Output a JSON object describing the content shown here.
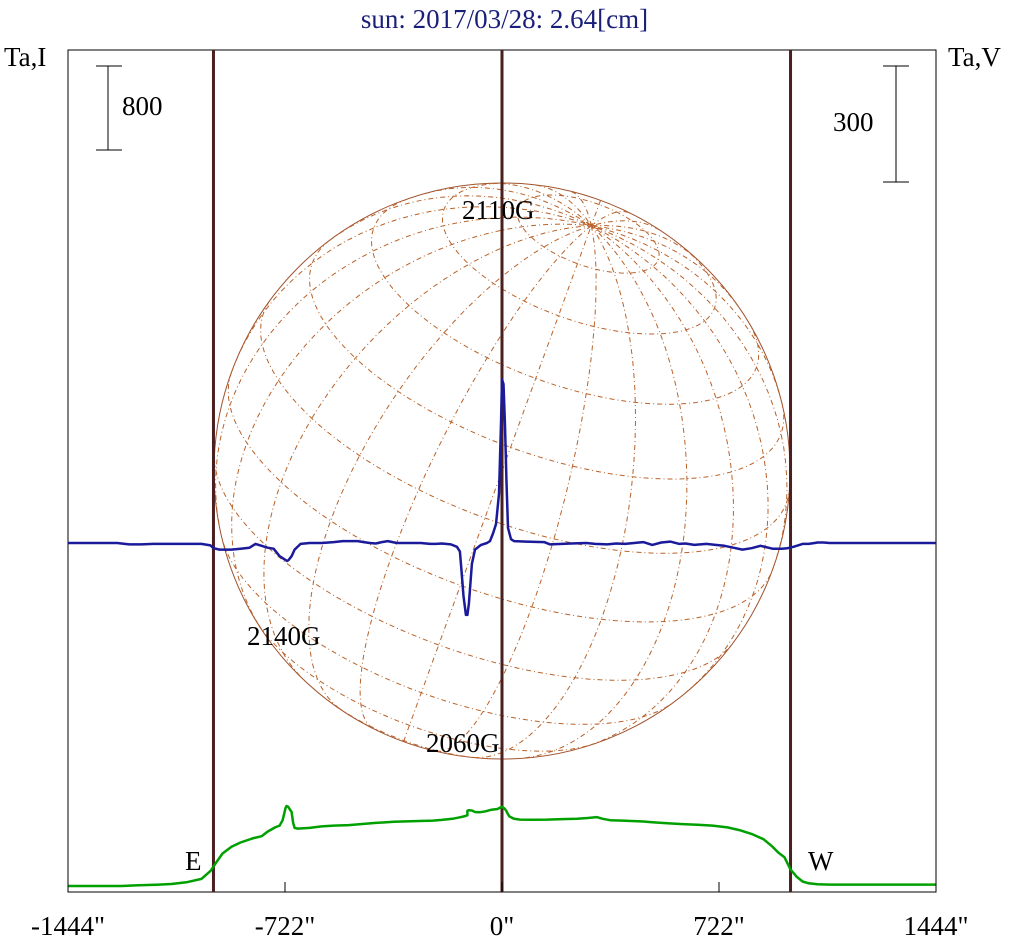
{
  "header": {
    "title": "sun: 2017/03/28: 2.64[cm]",
    "left_label": "Ta,I",
    "right_label": "Ta,V"
  },
  "scale_bars": {
    "left_value": "800",
    "right_value": "300"
  },
  "limb_labels": {
    "east": "E",
    "west": "W"
  },
  "chart_data": {
    "type": "line",
    "xlim": [
      -1444,
      1444
    ],
    "xticks": [
      -1444,
      -722,
      0,
      722,
      1444
    ],
    "xtick_labels": [
      "-1444\"",
      "-722\"",
      "0\"",
      "722\"",
      "1444\""
    ],
    "limb_lines_x": [
      -960,
      0,
      960
    ],
    "solar_radius": 960,
    "annotations": [
      {
        "text": "2110G",
        "x": 0,
        "series": "Ta,I"
      },
      {
        "text": "2140G",
        "x": -708,
        "series": "Ta,V"
      },
      {
        "text": "2060G",
        "x": -110,
        "series": "Ta,V"
      }
    ],
    "series": [
      {
        "name": "Ta,I",
        "color": "#00a000",
        "points": [
          [
            -1444,
            0
          ],
          [
            -1268,
            0
          ],
          [
            -1210,
            45
          ],
          [
            -1150,
            85
          ],
          [
            -1100,
            135
          ],
          [
            -1050,
            245
          ],
          [
            -1000,
            470
          ],
          [
            -970,
            1000
          ],
          [
            -950,
            1580
          ],
          [
            -930,
            2150
          ],
          [
            -900,
            2600
          ],
          [
            -870,
            2880
          ],
          [
            -830,
            3150
          ],
          [
            -800,
            3300
          ],
          [
            -780,
            3600
          ],
          [
            -755,
            3880
          ],
          [
            -740,
            4000
          ],
          [
            -730,
            4350
          ],
          [
            -720,
            5180
          ],
          [
            -717,
            5300
          ],
          [
            -712,
            5260
          ],
          [
            -700,
            4900
          ],
          [
            -695,
            4200
          ],
          [
            -690,
            3850
          ],
          [
            -680,
            3800
          ],
          [
            -640,
            3850
          ],
          [
            -600,
            3950
          ],
          [
            -560,
            4000
          ],
          [
            -510,
            4030
          ],
          [
            -470,
            4100
          ],
          [
            -420,
            4180
          ],
          [
            -360,
            4250
          ],
          [
            -290,
            4300
          ],
          [
            -230,
            4330
          ],
          [
            -200,
            4380
          ],
          [
            -165,
            4450
          ],
          [
            -140,
            4550
          ],
          [
            -128,
            4600
          ],
          [
            -115,
            4680
          ],
          [
            -115,
            4980
          ],
          [
            -110,
            5020
          ],
          [
            -100,
            5000
          ],
          [
            -90,
            4900
          ],
          [
            -75,
            4880
          ],
          [
            -55,
            4950
          ],
          [
            -35,
            5050
          ],
          [
            -15,
            5100
          ],
          [
            0,
            5260
          ],
          [
            10,
            5100
          ],
          [
            15,
            4950
          ],
          [
            20,
            4750
          ],
          [
            25,
            4600
          ],
          [
            40,
            4450
          ],
          [
            60,
            4400
          ],
          [
            100,
            4390
          ],
          [
            150,
            4400
          ],
          [
            200,
            4430
          ],
          [
            250,
            4450
          ],
          [
            285,
            4500
          ],
          [
            315,
            4560
          ],
          [
            335,
            4450
          ],
          [
            360,
            4360
          ],
          [
            400,
            4330
          ],
          [
            440,
            4300
          ],
          [
            470,
            4270
          ],
          [
            500,
            4220
          ],
          [
            550,
            4150
          ],
          [
            600,
            4100
          ],
          [
            650,
            4050
          ],
          [
            700,
            4000
          ],
          [
            750,
            3880
          ],
          [
            790,
            3700
          ],
          [
            830,
            3450
          ],
          [
            870,
            3100
          ],
          [
            900,
            2600
          ],
          [
            920,
            2200
          ],
          [
            940,
            1900
          ],
          [
            960,
            1100
          ],
          [
            980,
            620
          ],
          [
            1000,
            300
          ],
          [
            1020,
            180
          ],
          [
            1050,
            110
          ],
          [
            1090,
            95
          ],
          [
            1444,
            95
          ]
        ]
      },
      {
        "name": "Ta,V",
        "color": "#1a1a9a",
        "points": [
          [
            -1444,
            0
          ],
          [
            -1280,
            0
          ],
          [
            -1240,
            -15
          ],
          [
            -1200,
            -15
          ],
          [
            -1160,
            -10
          ],
          [
            -1000,
            -10
          ],
          [
            -970,
            -25
          ],
          [
            -960,
            -55
          ],
          [
            -940,
            -70
          ],
          [
            -900,
            -70
          ],
          [
            -870,
            -60
          ],
          [
            -840,
            -50
          ],
          [
            -820,
            -10
          ],
          [
            -800,
            -30
          ],
          [
            -780,
            -50
          ],
          [
            -760,
            -60
          ],
          [
            -740,
            -140
          ],
          [
            -725,
            -170
          ],
          [
            -715,
            -190
          ],
          [
            -710,
            -180
          ],
          [
            -700,
            -140
          ],
          [
            -690,
            -70
          ],
          [
            -670,
            -10
          ],
          [
            -640,
            0
          ],
          [
            -600,
            0
          ],
          [
            -560,
            10
          ],
          [
            -530,
            20
          ],
          [
            -500,
            20
          ],
          [
            -480,
            20
          ],
          [
            -460,
            10
          ],
          [
            -440,
            0
          ],
          [
            -420,
            -5
          ],
          [
            -400,
            10
          ],
          [
            -380,
            20
          ],
          [
            -350,
            0
          ],
          [
            -300,
            0
          ],
          [
            -270,
            0
          ],
          [
            -240,
            -10
          ],
          [
            -220,
            -10
          ],
          [
            -200,
            -5
          ],
          [
            -170,
            -15
          ],
          [
            -150,
            -40
          ],
          [
            -140,
            -90
          ],
          [
            -135,
            -280
          ],
          [
            -128,
            -560
          ],
          [
            -120,
            -760
          ],
          [
            -115,
            -760
          ],
          [
            -110,
            -640
          ],
          [
            -100,
            -220
          ],
          [
            -90,
            -70
          ],
          [
            -70,
            -20
          ],
          [
            -50,
            0
          ],
          [
            -40,
            20
          ],
          [
            -30,
            100
          ],
          [
            -20,
            200
          ],
          [
            -10,
            520
          ],
          [
            -3,
            1300
          ],
          [
            0,
            1730
          ],
          [
            5,
            1680
          ],
          [
            10,
            1240
          ],
          [
            15,
            640
          ],
          [
            20,
            160
          ],
          [
            30,
            40
          ],
          [
            40,
            20
          ],
          [
            80,
            15
          ],
          [
            140,
            10
          ],
          [
            160,
            -15
          ],
          [
            200,
            -10
          ],
          [
            230,
            -5
          ],
          [
            280,
            0
          ],
          [
            310,
            -10
          ],
          [
            350,
            -15
          ],
          [
            380,
            -5
          ],
          [
            410,
            -10
          ],
          [
            440,
            0
          ],
          [
            470,
            10
          ],
          [
            500,
            -20
          ],
          [
            530,
            5
          ],
          [
            560,
            15
          ],
          [
            590,
            -10
          ],
          [
            610,
            -5
          ],
          [
            640,
            -20
          ],
          [
            680,
            -10
          ],
          [
            710,
            -20
          ],
          [
            740,
            -30
          ],
          [
            770,
            -50
          ],
          [
            800,
            -70
          ],
          [
            830,
            -55
          ],
          [
            860,
            -30
          ],
          [
            900,
            -60
          ],
          [
            930,
            -60
          ],
          [
            950,
            -55
          ],
          [
            970,
            -40
          ],
          [
            990,
            -20
          ],
          [
            1000,
            -10
          ],
          [
            1020,
            -10
          ],
          [
            1040,
            0
          ],
          [
            1050,
            5
          ],
          [
            1070,
            5
          ],
          [
            1090,
            0
          ],
          [
            1444,
            0
          ]
        ]
      }
    ]
  }
}
